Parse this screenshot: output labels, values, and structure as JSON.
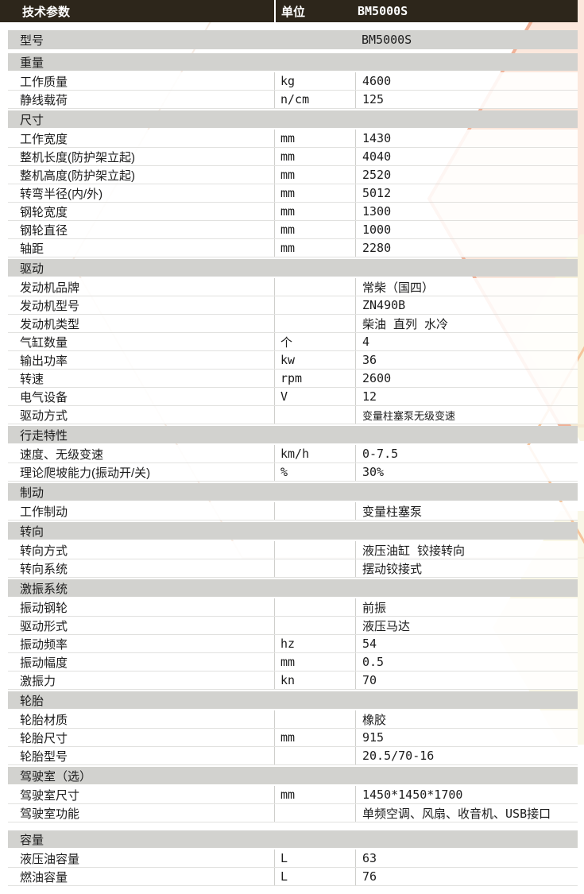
{
  "colors": {
    "header_bg": "#2d261b",
    "header_text": "#ffffff",
    "section_bg": "#d2d2cf",
    "line": "#cfcfcc",
    "text": "#1c1c1c",
    "peach": "#fce8dd",
    "salmon": "#f0b298",
    "cream": "#f7f3dd",
    "outline_orange": "#f5c49c"
  },
  "header": {
    "title": "技术参数",
    "unit_col": "单位",
    "model_col": "BM5000S"
  },
  "model_row": {
    "label": "型号",
    "value": "BM5000S"
  },
  "sections": [
    {
      "title": "重量",
      "rows": [
        {
          "label": "工作质量",
          "unit": "kg",
          "value": "4600"
        },
        {
          "label": "静线载荷",
          "unit": "n/cm",
          "value": "125"
        }
      ]
    },
    {
      "title": "尺寸",
      "rows": [
        {
          "label": "工作宽度",
          "unit": "mm",
          "value": "1430"
        },
        {
          "label": "整机长度(防护架立起)",
          "unit": "mm",
          "value": "4040"
        },
        {
          "label": "整机高度(防护架立起)",
          "unit": "mm",
          "value": "2520"
        },
        {
          "label": "转弯半径(内/外)",
          "unit": "mm",
          "value": "5012"
        },
        {
          "label": "钢轮宽度",
          "unit": "mm",
          "value": "1300"
        },
        {
          "label": "钢轮直径",
          "unit": "mm",
          "value": "1000"
        },
        {
          "label": "轴距",
          "unit": "mm",
          "value": "2280"
        }
      ]
    },
    {
      "title": "驱动",
      "rows": [
        {
          "label": "发动机品牌",
          "unit": "",
          "value": "常柴（国四）"
        },
        {
          "label": "发动机型号",
          "unit": "",
          "value": "ZN490B"
        },
        {
          "label": "发动机类型",
          "unit": "",
          "value": "柴油 直列 水冷"
        },
        {
          "label": "气缸数量",
          "unit": "个",
          "value": "4"
        },
        {
          "label": "输出功率",
          "unit": "kw",
          "value": "36"
        },
        {
          "label": "转速",
          "unit": "rpm",
          "value": "2600"
        },
        {
          "label": "电气设备",
          "unit": "V",
          "value": "12"
        },
        {
          "label": "驱动方式",
          "unit": "",
          "value": "变量柱塞泵无级变速"
        }
      ]
    },
    {
      "title": "行走特性",
      "rows": [
        {
          "label": "速度、无级变速",
          "unit": "km/h",
          "value": "0-7.5"
        },
        {
          "label": "理论爬坡能力(振动开/关)",
          "unit": "%",
          "value": "30%"
        }
      ]
    },
    {
      "title": "制动",
      "rows": [
        {
          "label": "工作制动",
          "unit": "",
          "value": "变量柱塞泵"
        }
      ]
    },
    {
      "title": "转向",
      "rows": [
        {
          "label": "转向方式",
          "unit": "",
          "value": "液压油缸 铰接转向"
        },
        {
          "label": "转向系统",
          "unit": "",
          "value": "摆动铰接式"
        }
      ]
    },
    {
      "title": "激振系统",
      "rows": [
        {
          "label": "振动钢轮",
          "unit": "",
          "value": "前振"
        },
        {
          "label": "驱动形式",
          "unit": "",
          "value": "液压马达"
        },
        {
          "label": "振动频率",
          "unit": "hz",
          "value": "54"
        },
        {
          "label": "振动幅度",
          "unit": "mm",
          "value": "0.5"
        },
        {
          "label": "激振力",
          "unit": "kn",
          "value": "70"
        }
      ]
    },
    {
      "title": "轮胎",
      "rows": [
        {
          "label": "轮胎材质",
          "unit": "",
          "value": "橡胶"
        },
        {
          "label": "轮胎尺寸",
          "unit": "mm",
          "value": "915"
        },
        {
          "label": "轮胎型号",
          "unit": "",
          "value": "20.5/70-16"
        }
      ]
    },
    {
      "title": "驾驶室（选）",
      "rows": [
        {
          "label": "驾驶室尺寸",
          "unit": "mm",
          "value": "1450*1450*1700"
        },
        {
          "label": "驾驶室功能",
          "unit": "",
          "value": "单频空调、风扇、收音机、USB接口"
        }
      ]
    },
    {
      "title": "容量",
      "rows": [
        {
          "label": "液压油容量",
          "unit": "L",
          "value": "63"
        },
        {
          "label": "燃油容量",
          "unit": "L",
          "value": "76"
        }
      ]
    }
  ]
}
